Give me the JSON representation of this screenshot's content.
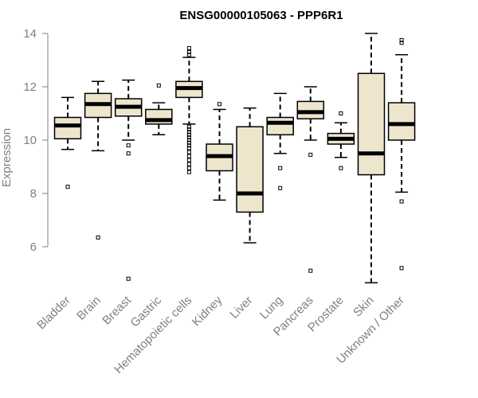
{
  "chart_data": {
    "type": "boxplot",
    "title": "ENSG00000105063 - PPP6R1",
    "xlabel": "",
    "ylabel": "Expression",
    "ylim": [
      4.6,
      14.2
    ],
    "yticks": [
      6,
      8,
      10,
      12,
      14
    ],
    "grid": false,
    "legend": "none",
    "categories": [
      "Bladder",
      "Brain",
      "Breast",
      "Gastric",
      "Hematopoietic cells",
      "Kidney",
      "Liver",
      "Lung",
      "Pancreas",
      "Prostate",
      "Skin",
      "Unknown / Other"
    ],
    "boxes": [
      {
        "category": "Bladder",
        "whisker_low": 9.65,
        "q1": 10.05,
        "median": 10.55,
        "q3": 10.85,
        "whisker_high": 11.6,
        "outliers": [
          8.25
        ]
      },
      {
        "category": "Brain",
        "whisker_low": 9.6,
        "q1": 10.85,
        "median": 11.35,
        "q3": 11.75,
        "whisker_high": 12.2,
        "outliers": [
          6.35
        ]
      },
      {
        "category": "Breast",
        "whisker_low": 10.0,
        "q1": 10.9,
        "median": 11.25,
        "q3": 11.55,
        "whisker_high": 12.25,
        "outliers": [
          9.8,
          9.5,
          4.8
        ]
      },
      {
        "category": "Gastric",
        "whisker_low": 10.2,
        "q1": 10.6,
        "median": 10.75,
        "q3": 11.15,
        "whisker_high": 11.4,
        "outliers": [
          12.05
        ]
      },
      {
        "category": "Hematopoietic cells",
        "whisker_low": 10.6,
        "q1": 11.6,
        "median": 11.95,
        "q3": 12.2,
        "whisker_high": 13.1,
        "outliers": [
          13.2,
          13.3,
          13.45,
          10.5,
          10.4,
          10.3,
          10.2,
          10.1,
          10.0,
          9.9,
          9.8,
          9.7,
          9.55,
          9.4,
          9.25,
          9.1,
          8.95,
          8.8
        ]
      },
      {
        "category": "Kidney",
        "whisker_low": 7.75,
        "q1": 8.85,
        "median": 9.4,
        "q3": 9.85,
        "whisker_high": 11.15,
        "outliers": [
          11.35
        ]
      },
      {
        "category": "Liver",
        "whisker_low": 6.15,
        "q1": 7.3,
        "median": 8.0,
        "q3": 10.5,
        "whisker_high": 11.2,
        "outliers": []
      },
      {
        "category": "Lung",
        "whisker_low": 9.5,
        "q1": 10.2,
        "median": 10.65,
        "q3": 10.85,
        "whisker_high": 11.75,
        "outliers": [
          8.95,
          8.2
        ]
      },
      {
        "category": "Pancreas",
        "whisker_low": 10.0,
        "q1": 10.8,
        "median": 11.05,
        "q3": 11.45,
        "whisker_high": 12.0,
        "outliers": [
          9.45,
          5.1
        ]
      },
      {
        "category": "Prostate",
        "whisker_low": 9.35,
        "q1": 9.85,
        "median": 10.05,
        "q3": 10.25,
        "whisker_high": 10.65,
        "outliers": [
          11.0,
          8.95
        ]
      },
      {
        "category": "Skin",
        "whisker_low": 4.65,
        "q1": 8.7,
        "median": 9.5,
        "q3": 12.5,
        "whisker_high": 14.0,
        "outliers": []
      },
      {
        "category": "Unknown / Other",
        "whisker_low": 8.05,
        "q1": 10.0,
        "median": 10.6,
        "q3": 11.4,
        "whisker_high": 13.2,
        "outliers": [
          13.65,
          13.75,
          7.7,
          5.2
        ]
      }
    ],
    "colors": {
      "box_fill": "#ede6cd",
      "box_stroke": "#000000",
      "median": "#000000",
      "axis": "#808080",
      "title": "#000000"
    }
  }
}
